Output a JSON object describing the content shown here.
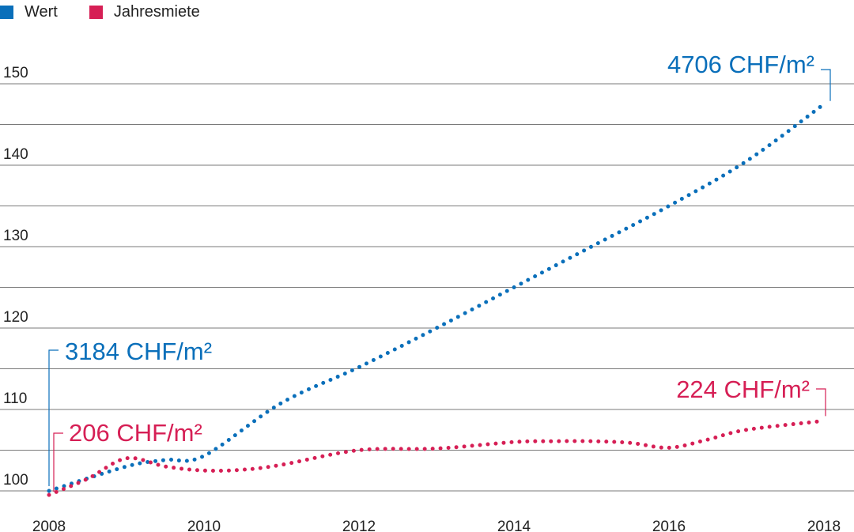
{
  "colors": {
    "wert": "#0a6fba",
    "miete": "#d61f55",
    "grid": "#7a7a7a"
  },
  "legend": [
    {
      "label": "Wert",
      "color": "#0a6fba"
    },
    {
      "label": "Jahresmiete",
      "color": "#d61f55"
    }
  ],
  "chart_data": {
    "type": "line",
    "title": "",
    "xlabel": "",
    "ylabel": "",
    "xlim": [
      2008,
      2018
    ],
    "ylim": [
      100,
      150
    ],
    "x_ticks": [
      "2008",
      "2010",
      "2012",
      "2014",
      "2016",
      "2018"
    ],
    "y_ticks": [
      "100",
      "110",
      "120",
      "130",
      "140",
      "150"
    ],
    "grid": true,
    "legend_position": "top-left",
    "series": [
      {
        "name": "Wert",
        "color": "#0a6fba",
        "x": [
          2008,
          2009,
          2009.5,
          2010,
          2011,
          2012,
          2013,
          2014,
          2015,
          2016,
          2017,
          2018
        ],
        "y": [
          100,
          103,
          103.8,
          104.3,
          110.8,
          115.2,
          120,
          125,
          130,
          135,
          140.5,
          147.5
        ]
      },
      {
        "name": "Jahresmiete",
        "color": "#d61f55",
        "x": [
          2008,
          2008.5,
          2009,
          2009.5,
          2010,
          2010.5,
          2011,
          2012,
          2013,
          2014,
          2014.5,
          2015,
          2015.5,
          2016,
          2016.5,
          2017,
          2018
        ],
        "y": [
          99.5,
          101.5,
          104,
          103,
          102.5,
          102.6,
          103.2,
          105,
          105.2,
          106,
          106.1,
          106.1,
          105.9,
          105.3,
          106.3,
          107.5,
          108.6
        ]
      }
    ],
    "annotations": [
      {
        "text": "3184 CHF/m²",
        "series": "Wert",
        "at": "start"
      },
      {
        "text": "4706 CHF/m²",
        "series": "Wert",
        "at": "end"
      },
      {
        "text": "206 CHF/m²",
        "series": "Jahresmiete",
        "at": "start"
      },
      {
        "text": "224 CHF/m²",
        "series": "Jahresmiete",
        "at": "end"
      }
    ]
  }
}
